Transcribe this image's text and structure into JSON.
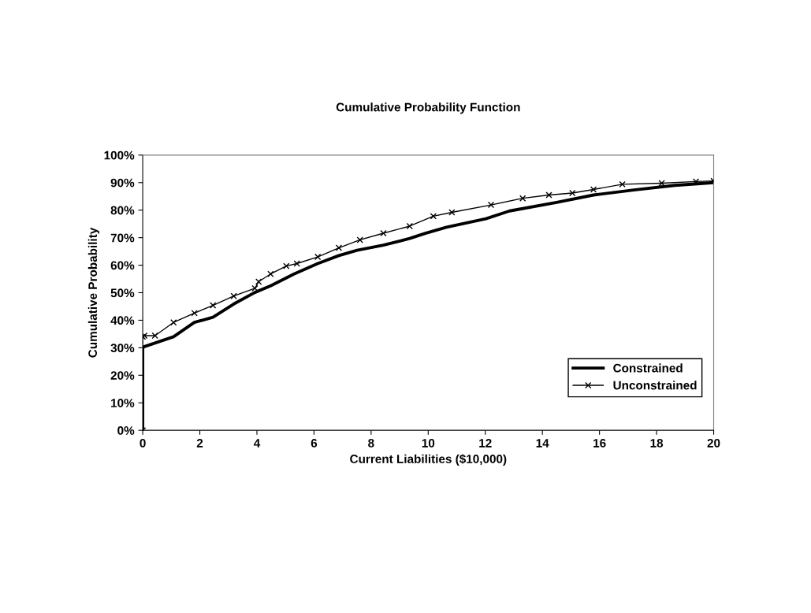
{
  "chart_data": {
    "type": "line",
    "title": "Cumulative Probability Function",
    "xlabel": "Current Liabilities ($10,000)",
    "ylabel": "Cumulative Probability",
    "xlim": [
      0,
      20
    ],
    "xticks": [
      0,
      2,
      4,
      6,
      8,
      10,
      12,
      14,
      16,
      18,
      20
    ],
    "ylim": [
      0,
      100
    ],
    "yticks": [
      {
        "value": 0,
        "label": "0%"
      },
      {
        "value": 10,
        "label": "10%"
      },
      {
        "value": 20,
        "label": "20%"
      },
      {
        "value": 30,
        "label": "30%"
      },
      {
        "value": 40,
        "label": "40%"
      },
      {
        "value": 50,
        "label": "50%"
      },
      {
        "value": 60,
        "label": "60%"
      },
      {
        "value": 70,
        "label": "70%"
      },
      {
        "value": 80,
        "label": "80%"
      },
      {
        "value": 90,
        "label": "90%"
      },
      {
        "value": 100,
        "label": "100%"
      }
    ],
    "grid": false,
    "legend": "bottom right",
    "series": [
      {
        "name": "Constrained",
        "color": "#000000",
        "line_style": "solid",
        "marker": "none",
        "x": [
          0,
          0,
          0.06,
          1.08,
          1.81,
          2.46,
          3.19,
          3.93,
          4.48,
          5.3,
          6.13,
          6.87,
          7.51,
          8.43,
          9.35,
          9.9,
          10.64,
          12.02,
          12.85,
          14.5,
          15.79,
          17.26,
          18.64,
          20.0
        ],
        "values": [
          0,
          30.0,
          30.4,
          34.0,
          39.2,
          41.1,
          45.9,
          50.1,
          52.5,
          56.8,
          60.6,
          63.5,
          65.4,
          67.3,
          69.7,
          71.6,
          73.8,
          76.9,
          79.7,
          82.8,
          85.5,
          87.4,
          89.0,
          90.0
        ]
      },
      {
        "name": "Unconstrained",
        "color": "#000000",
        "line_style": "solid",
        "marker": "cross",
        "x": [
          0,
          0,
          0.06,
          0.43,
          1.08,
          1.81,
          2.46,
          3.19,
          3.93,
          4.06,
          4.48,
          5.03,
          5.4,
          6.13,
          6.87,
          7.61,
          8.43,
          9.35,
          10.18,
          10.83,
          12.2,
          13.31,
          14.23,
          15.05,
          15.79,
          16.8,
          18.18,
          19.38,
          20.0
        ],
        "values": [
          0,
          34.0,
          34.4,
          34.4,
          39.2,
          42.6,
          45.4,
          48.8,
          51.6,
          54.0,
          56.8,
          59.7,
          60.6,
          63.0,
          66.3,
          69.2,
          71.6,
          74.2,
          77.8,
          79.2,
          81.9,
          84.3,
          85.5,
          86.2,
          87.5,
          89.4,
          89.8,
          90.4,
          90.6
        ]
      }
    ]
  }
}
